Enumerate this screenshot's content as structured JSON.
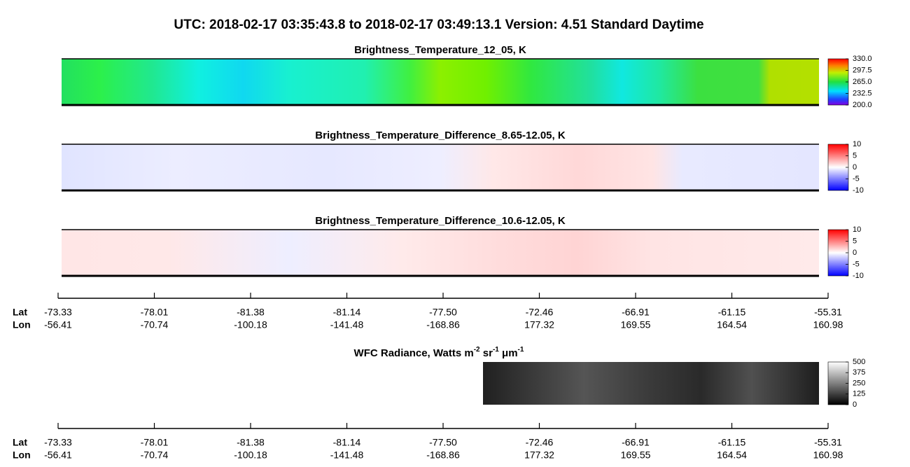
{
  "title": "UTC:  2018-02-17   03:35:43.8  to  2018-02-17   03:49:13.1    Version: 4.51  Standard Daytime",
  "panels": [
    {
      "title": "Brightness_Temperature_12_05, K",
      "colorbar_ticks": [
        {
          "value": 330,
          "label": "330.0"
        },
        {
          "value": 297.5,
          "label": "297.5"
        },
        {
          "value": 265,
          "label": "265.0"
        },
        {
          "value": 232.5,
          "label": "232.5"
        },
        {
          "value": 200,
          "label": "200.0"
        }
      ]
    },
    {
      "title": "Brightness_Temperature_Difference_8.65-12.05, K",
      "colorbar_ticks": [
        10,
        5,
        0,
        -5,
        -10
      ]
    },
    {
      "title": "Brightness_Temperature_Difference_10.6-12.05, K",
      "colorbar_ticks": [
        10,
        5,
        0,
        -5,
        -10
      ]
    }
  ],
  "wfc": {
    "title_parts": [
      "WFC Radiance, Watts m",
      "-2",
      " sr",
      "-1",
      " μm",
      "-1"
    ],
    "colorbar_ticks": [
      500,
      375,
      250,
      125,
      0
    ]
  },
  "axes": [
    {
      "lat_label": "Lat",
      "lon_label": "Lon",
      "lat": [
        "-73.33",
        "-78.01",
        "-81.38",
        "-81.14",
        "-77.50",
        "-72.46",
        "-66.91",
        "-61.15",
        "-55.31"
      ],
      "lon": [
        "-56.41",
        "-70.74",
        "-100.18",
        "-141.48",
        "-168.86",
        "177.32",
        "169.55",
        "164.54",
        "160.98"
      ]
    },
    {
      "lat_label": "Lat",
      "lon_label": "Lon",
      "lat": [
        "-73.33",
        "-78.01",
        "-81.38",
        "-81.14",
        "-77.50",
        "-72.46",
        "-66.91",
        "-61.15",
        "-55.31"
      ],
      "lon": [
        "-56.41",
        "-70.74",
        "-100.18",
        "-141.48",
        "-168.86",
        "177.32",
        "169.55",
        "164.54",
        "160.98"
      ]
    }
  ]
}
